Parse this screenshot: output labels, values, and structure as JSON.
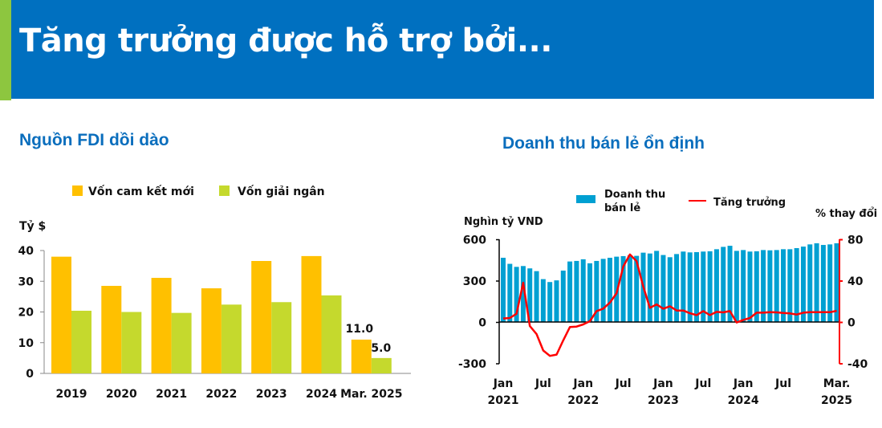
{
  "header": {
    "title": "Tăng trưởng được hỗ trợ bởi..."
  },
  "colors": {
    "banner": "#0070C0",
    "stripe": "#8DC63F",
    "committed": "#FFC000",
    "disbursed": "#C5D92D",
    "retail": "#00A0D2",
    "growth": "#FF0000"
  },
  "chart_data": [
    {
      "type": "bar",
      "title": "Nguồn FDI dồi dào",
      "ylabel": "Tỷ $",
      "ylim": [
        0,
        40
      ],
      "yticks": [
        "0",
        "10",
        "20",
        "30",
        "40"
      ],
      "categories": [
        "2019",
        "2020",
        "2021",
        "2022",
        "2023",
        "2024",
        "Mar. 2025"
      ],
      "series": [
        {
          "name": "Vốn cam kết mới",
          "values": [
            38.0,
            28.5,
            31.1,
            27.7,
            36.6,
            38.2,
            11.0
          ]
        },
        {
          "name": "Vốn giải ngân",
          "values": [
            20.4,
            20.0,
            19.7,
            22.4,
            23.2,
            25.4,
            5.0
          ]
        }
      ],
      "data_labels": [
        "11.0",
        "5.0"
      ],
      "legend": "top"
    },
    {
      "type": "bar+line",
      "title": "Doanh thu bán lẻ ổn định",
      "ylabel": "Nghìn tỷ VND",
      "y2label": "% thay đổi",
      "ylim": [
        -300,
        600
      ],
      "y2lim": [
        -40,
        80
      ],
      "yticks": [
        "-300",
        "0",
        "300",
        "600"
      ],
      "y2ticks": [
        "-40",
        "0",
        "40",
        "80"
      ],
      "xticks": [
        {
          "index": 0,
          "l1": "Jan",
          "l2": "2021"
        },
        {
          "index": 6,
          "l1": "Jul",
          "l2": ""
        },
        {
          "index": 12,
          "l1": "Jan",
          "l2": "2022"
        },
        {
          "index": 18,
          "l1": "Jul",
          "l2": ""
        },
        {
          "index": 24,
          "l1": "Jan",
          "l2": "2023"
        },
        {
          "index": 30,
          "l1": "Jul",
          "l2": ""
        },
        {
          "index": 36,
          "l1": "Jan",
          "l2": "2024"
        },
        {
          "index": 42,
          "l1": "Jul",
          "l2": ""
        },
        {
          "index": 50,
          "l1": "Mar.",
          "l2": "2025"
        }
      ],
      "legend_bar_l1": "Doanh thu",
      "legend_bar_l2": "bán lẻ",
      "legend_line": "Tăng trưởng",
      "retail_sales": [
        466,
        422,
        400,
        406,
        389,
        369,
        311,
        290,
        302,
        373,
        439,
        443,
        455,
        426,
        443,
        458,
        466,
        474,
        478,
        484,
        480,
        503,
        497,
        516,
        486,
        470,
        493,
        511,
        505,
        507,
        511,
        513,
        528,
        545,
        553,
        516,
        522,
        511,
        513,
        522,
        520,
        522,
        528,
        528,
        536,
        547,
        563,
        571,
        559,
        563,
        571
      ],
      "growth_pct": [
        3.4,
        3.9,
        8,
        38,
        -3.9,
        -11.6,
        -27.6,
        -32.8,
        -31.5,
        -17.8,
        -4.9,
        -4.4,
        -2.3,
        0.8,
        10.6,
        12.9,
        18.8,
        27.9,
        53.7,
        65.3,
        58.8,
        34.3,
        13.7,
        17,
        12.9,
        15.2,
        11.1,
        11.1,
        8.5,
        6.7,
        10.6,
        6.7,
        9.8,
        9.3,
        10.6,
        -0.5,
        2,
        3.9,
        9,
        9,
        9.5,
        9.3,
        8.8,
        8.3,
        7.2,
        9,
        9.5,
        9.5,
        9.5,
        9.5,
        10.8
      ]
    }
  ]
}
